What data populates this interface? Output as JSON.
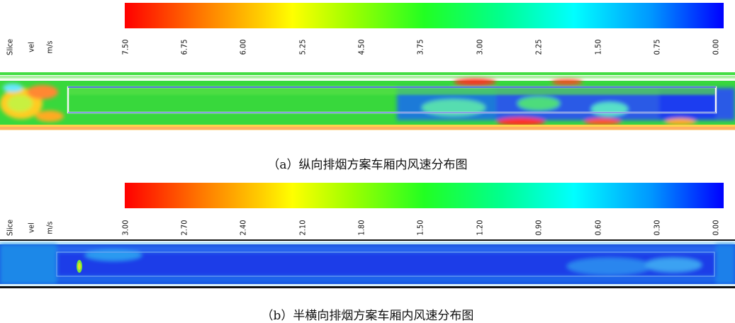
{
  "panels": [
    {
      "id": "a",
      "legend": {
        "slice": "Slice",
        "var": "vel",
        "unit": "m/s",
        "ticks": [
          "7.50",
          "6.75",
          "6.00",
          "5.25",
          "4.50",
          "3.75",
          "3.00",
          "2.25",
          "1.50",
          "0.75",
          "0.00"
        ]
      },
      "caption": "（a）纵向排烟方案车厢内风速分布图"
    },
    {
      "id": "b",
      "legend": {
        "slice": "Slice",
        "var": "vel",
        "unit": "m/s",
        "ticks": [
          "3.00",
          "2.70",
          "2.40",
          "2.10",
          "1.80",
          "1.50",
          "1.20",
          "0.90",
          "0.60",
          "0.30",
          "0.00"
        ]
      },
      "caption": "（b）半横向排烟方案车厢内风速分布图"
    }
  ],
  "colors": {
    "max": "#ff0000",
    "mid": "#22ff22",
    "min": "#0000ff"
  }
}
